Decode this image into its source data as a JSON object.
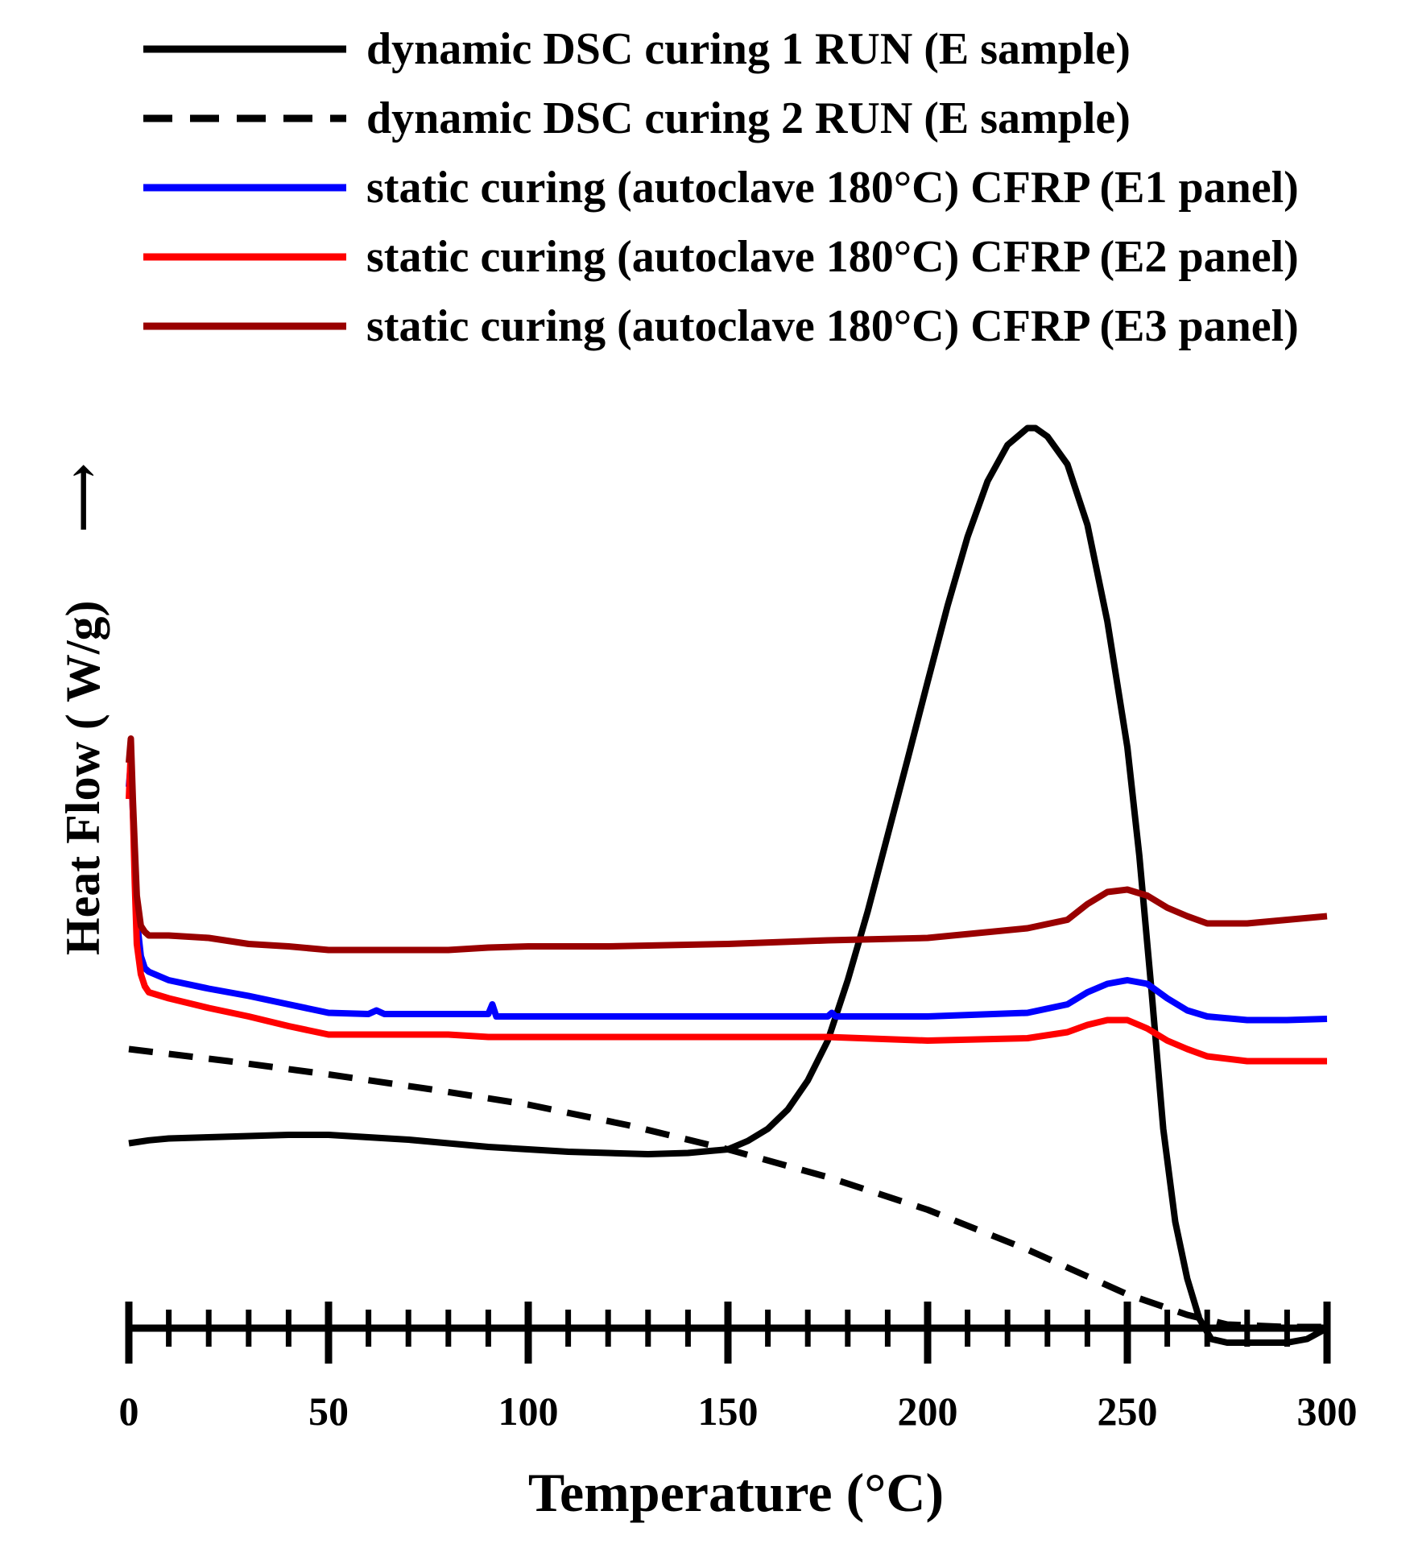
{
  "chart_data": {
    "type": "line",
    "xlabel": "Temperature   (°C)",
    "ylabel": "Heat Flow  ( W/g)",
    "ylabel_arrow": "⟶",
    "xlim": [
      0,
      300
    ],
    "x_ticks": [
      0,
      50,
      100,
      150,
      200,
      250,
      300
    ],
    "x_tick_labels": [
      "0",
      "50",
      "100",
      "150",
      "200",
      "250",
      "300"
    ],
    "x_minor_tick_step": 10,
    "y_units": "arbitrary (no y-axis scale shown)",
    "legend_position": "top",
    "grid": false,
    "series": [
      {
        "name": "dynamic DSC curing 1 RUN (E sample)",
        "color": "#000000",
        "dash": "solid",
        "x": [
          0,
          5,
          10,
          20,
          30,
          40,
          50,
          60,
          70,
          80,
          90,
          100,
          110,
          120,
          130,
          140,
          150,
          155,
          160,
          165,
          170,
          175,
          180,
          185,
          190,
          195,
          200,
          205,
          210,
          215,
          220,
          225,
          227,
          230,
          235,
          240,
          245,
          250,
          253,
          256,
          259,
          262,
          265,
          268,
          271,
          275,
          280,
          285,
          290,
          295,
          300
        ],
        "y": [
          0.15,
          0.175,
          0.19,
          0.2,
          0.21,
          0.22,
          0.22,
          0.2,
          0.18,
          0.15,
          0.12,
          0.1,
          0.08,
          0.07,
          0.06,
          0.07,
          0.1,
          0.17,
          0.27,
          0.43,
          0.67,
          1.0,
          1.5,
          2.07,
          2.7,
          3.33,
          3.97,
          4.6,
          5.17,
          5.63,
          5.93,
          6.07,
          6.07,
          6.0,
          5.77,
          5.27,
          4.47,
          3.43,
          2.53,
          1.43,
          0.27,
          -0.5,
          -0.97,
          -1.3,
          -1.47,
          -1.5,
          -1.5,
          -1.5,
          -1.5,
          -1.47,
          -1.38
        ]
      },
      {
        "name": "dynamic DSC curing 2 RUN (E sample)",
        "color": "#000000",
        "dash": "dashed",
        "x": [
          0,
          25,
          50,
          75,
          100,
          125,
          150,
          175,
          200,
          225,
          250,
          265,
          275,
          290,
          300
        ],
        "y": [
          0.93,
          0.83,
          0.72,
          0.6,
          0.47,
          0.3,
          0.1,
          -0.13,
          -0.4,
          -0.73,
          -1.1,
          -1.27,
          -1.35,
          -1.37,
          -1.37
        ]
      },
      {
        "name": "static curing (autoclave 180°C) CFRP (E1 panel)",
        "color": "#0000ff",
        "dash": "solid",
        "x": [
          0,
          0.5,
          1,
          1.5,
          2,
          3,
          4,
          5,
          10,
          20,
          30,
          40,
          50,
          60,
          62,
          64,
          70,
          80,
          90,
          91,
          92,
          93,
          100,
          110,
          120,
          150,
          175,
          176,
          177,
          200,
          225,
          235,
          240,
          245,
          250,
          255,
          260,
          265,
          270,
          280,
          290,
          300
        ],
        "y": [
          3.1,
          3.3,
          2.9,
          2.5,
          2.0,
          1.7,
          1.6,
          1.57,
          1.5,
          1.43,
          1.37,
          1.3,
          1.23,
          1.22,
          1.25,
          1.22,
          1.22,
          1.22,
          1.22,
          1.3,
          1.2,
          1.2,
          1.2,
          1.2,
          1.2,
          1.2,
          1.2,
          1.23,
          1.2,
          1.2,
          1.23,
          1.3,
          1.4,
          1.47,
          1.5,
          1.47,
          1.35,
          1.25,
          1.2,
          1.17,
          1.17,
          1.18
        ]
      },
      {
        "name": "static curing (autoclave 180°C) CFRP (E2 panel)",
        "color": "#ff0000",
        "dash": "solid",
        "x": [
          0,
          0.5,
          1,
          1.5,
          2,
          3,
          4,
          5,
          10,
          20,
          30,
          40,
          50,
          60,
          70,
          80,
          90,
          100,
          120,
          150,
          175,
          200,
          225,
          235,
          240,
          245,
          250,
          255,
          260,
          265,
          270,
          280,
          290,
          300
        ],
        "y": [
          3.0,
          3.4,
          2.9,
          2.3,
          1.8,
          1.55,
          1.45,
          1.4,
          1.35,
          1.27,
          1.2,
          1.12,
          1.05,
          1.05,
          1.05,
          1.05,
          1.03,
          1.03,
          1.03,
          1.03,
          1.03,
          1.0,
          1.02,
          1.07,
          1.13,
          1.17,
          1.17,
          1.1,
          1.0,
          0.93,
          0.87,
          0.83,
          0.83,
          0.83
        ]
      },
      {
        "name": "static curing (autoclave 180°C) CFRP (E3 panel)",
        "color": "#990000",
        "dash": "solid",
        "x": [
          0,
          0.5,
          1,
          1.5,
          2,
          3,
          4,
          5,
          10,
          20,
          30,
          40,
          50,
          60,
          80,
          90,
          100,
          120,
          150,
          175,
          200,
          225,
          235,
          240,
          245,
          250,
          255,
          260,
          265,
          270,
          280,
          290,
          300
        ],
        "y": [
          3.3,
          3.5,
          3.0,
          2.6,
          2.2,
          1.95,
          1.9,
          1.87,
          1.87,
          1.85,
          1.8,
          1.78,
          1.75,
          1.75,
          1.75,
          1.77,
          1.78,
          1.78,
          1.8,
          1.83,
          1.85,
          1.93,
          2.0,
          2.13,
          2.23,
          2.25,
          2.2,
          2.1,
          2.03,
          1.97,
          1.97,
          2.0,
          2.03
        ]
      }
    ]
  }
}
